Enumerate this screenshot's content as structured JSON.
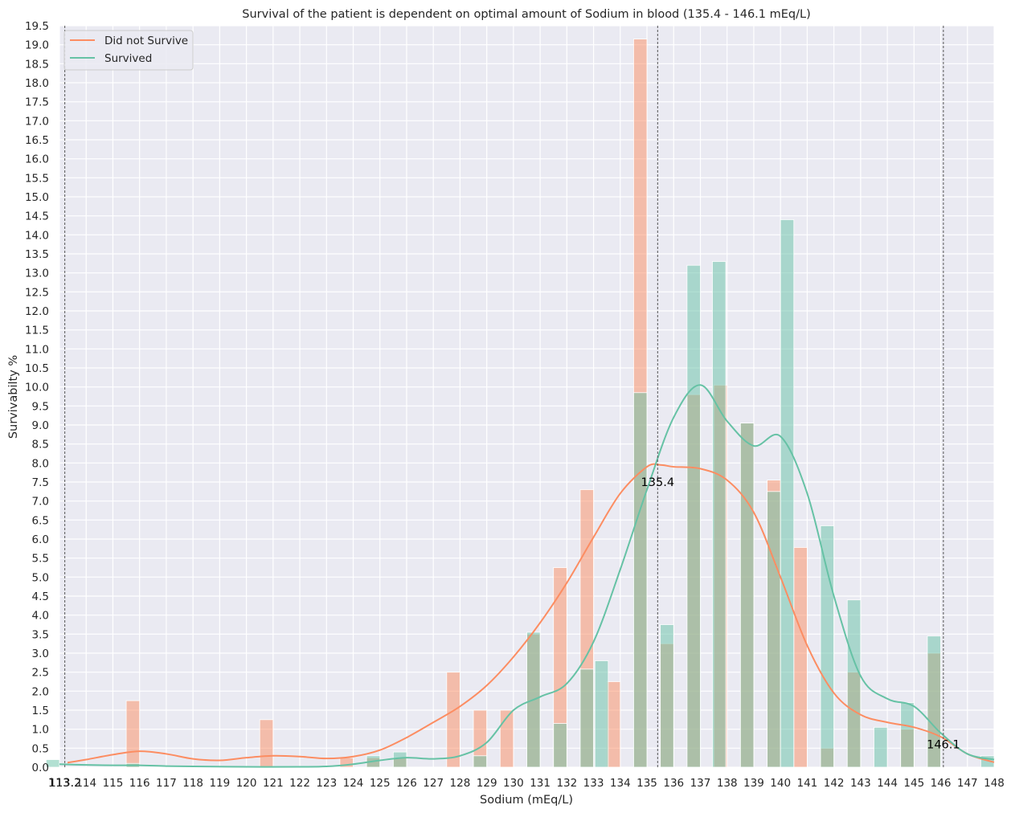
{
  "chart_data": {
    "type": "bar",
    "title": "Survival of the patient is dependent on optimal amount of Sodium in blood (135.4 - 146.1 mEq/L)",
    "xlabel": "Sodium (mEq/L)",
    "ylabel": "Survivabilty %",
    "xlim": [
      113,
      148
    ],
    "ylim": [
      0,
      19.5
    ],
    "x_ticks": [
      113,
      114,
      115,
      116,
      117,
      118,
      119,
      120,
      121,
      122,
      123,
      124,
      125,
      126,
      127,
      128,
      129,
      130,
      131,
      132,
      133,
      134,
      135,
      136,
      137,
      138,
      139,
      140,
      141,
      142,
      143,
      144,
      145,
      146,
      147,
      148
    ],
    "y_ticks": [
      "0.0",
      "0.5",
      "1.0",
      "1.5",
      "2.0",
      "2.5",
      "3.0",
      "3.5",
      "4.0",
      "4.5",
      "5.0",
      "5.5",
      "6.0",
      "6.5",
      "7.0",
      "7.5",
      "8.0",
      "8.5",
      "9.0",
      "9.5",
      "10.0",
      "10.5",
      "11.0",
      "11.5",
      "12.0",
      "12.5",
      "13.0",
      "13.5",
      "14.0",
      "14.5",
      "15.0",
      "15.5",
      "16.0",
      "16.5",
      "17.0",
      "17.5",
      "18.0",
      "18.5",
      "19.0",
      "19.5"
    ],
    "grid": true,
    "legend_position": "top-left",
    "series": [
      {
        "name": "Did not Survive",
        "color": "#fc8d62",
        "bars": [
          {
            "x": 116,
            "value": 1.75
          },
          {
            "x": 121,
            "value": 1.25
          },
          {
            "x": 124,
            "value": 0.25
          },
          {
            "x": 125,
            "value": 0.25
          },
          {
            "x": 126,
            "value": 0.25
          },
          {
            "x": 128,
            "value": 2.5
          },
          {
            "x": 129,
            "value": 1.5
          },
          {
            "x": 130,
            "value": 1.5
          },
          {
            "x": 131,
            "value": 3.5
          },
          {
            "x": 132,
            "value": 5.25
          },
          {
            "x": 133,
            "value": 7.3
          },
          {
            "x": 134,
            "value": 2.25
          },
          {
            "x": 135,
            "value": 19.15
          },
          {
            "x": 136,
            "value": 3.25
          },
          {
            "x": 137,
            "value": 9.8
          },
          {
            "x": 138,
            "value": 10.05
          },
          {
            "x": 139,
            "value": 9.05
          },
          {
            "x": 140,
            "value": 7.55
          },
          {
            "x": 141,
            "value": 5.78
          },
          {
            "x": 142,
            "value": 0.5
          },
          {
            "x": 143,
            "value": 2.5
          },
          {
            "x": 145,
            "value": 1.0
          },
          {
            "x": 146,
            "value": 3.0
          }
        ],
        "kde": [
          [
            113.3,
            0.12
          ],
          [
            114,
            0.2
          ],
          [
            115,
            0.33
          ],
          [
            116,
            0.42
          ],
          [
            117,
            0.35
          ],
          [
            118,
            0.22
          ],
          [
            119,
            0.18
          ],
          [
            120,
            0.25
          ],
          [
            121,
            0.3
          ],
          [
            122,
            0.28
          ],
          [
            123,
            0.23
          ],
          [
            124,
            0.28
          ],
          [
            125,
            0.45
          ],
          [
            126,
            0.78
          ],
          [
            127,
            1.18
          ],
          [
            128,
            1.6
          ],
          [
            129,
            2.15
          ],
          [
            130,
            2.9
          ],
          [
            131,
            3.8
          ],
          [
            132,
            4.85
          ],
          [
            133,
            6.05
          ],
          [
            134,
            7.2
          ],
          [
            135,
            7.9
          ],
          [
            135.5,
            7.95
          ],
          [
            136,
            7.9
          ],
          [
            137,
            7.85
          ],
          [
            138,
            7.55
          ],
          [
            139,
            6.7
          ],
          [
            140,
            5.0
          ],
          [
            141,
            3.2
          ],
          [
            142,
            1.95
          ],
          [
            143,
            1.38
          ],
          [
            144,
            1.18
          ],
          [
            145,
            1.05
          ],
          [
            146,
            0.8
          ],
          [
            147,
            0.35
          ],
          [
            148,
            0.13
          ]
        ]
      },
      {
        "name": "Survived",
        "color": "#66c2a5",
        "bars": [
          {
            "x": 113,
            "value": 0.2
          },
          {
            "x": 116,
            "value": 0.1
          },
          {
            "x": 125,
            "value": 0.3
          },
          {
            "x": 126,
            "value": 0.4
          },
          {
            "x": 129,
            "value": 0.3
          },
          {
            "x": 131,
            "value": 3.55
          },
          {
            "x": 132,
            "value": 1.15
          },
          {
            "x": 133,
            "value": 2.58
          },
          {
            "x": 133.55,
            "value": 2.8
          },
          {
            "x": 135,
            "value": 9.85
          },
          {
            "x": 136,
            "value": 3.75
          },
          {
            "x": 137,
            "value": 13.2
          },
          {
            "x": 137.95,
            "value": 13.3
          },
          {
            "x": 139,
            "value": 9.05
          },
          {
            "x": 140,
            "value": 7.25
          },
          {
            "x": 140.5,
            "value": 14.4
          },
          {
            "x": 142,
            "value": 6.35
          },
          {
            "x": 143,
            "value": 4.4
          },
          {
            "x": 144,
            "value": 1.05
          },
          {
            "x": 145,
            "value": 1.7
          },
          {
            "x": 146,
            "value": 3.45
          },
          {
            "x": 148,
            "value": 0.3
          }
        ],
        "kde": [
          [
            113,
            0.08
          ],
          [
            114,
            0.06
          ],
          [
            115,
            0.05
          ],
          [
            116,
            0.05
          ],
          [
            117,
            0.03
          ],
          [
            118,
            0.02
          ],
          [
            120,
            0.01
          ],
          [
            122,
            0.01
          ],
          [
            123,
            0.02
          ],
          [
            124,
            0.08
          ],
          [
            125,
            0.18
          ],
          [
            126,
            0.25
          ],
          [
            127,
            0.22
          ],
          [
            128,
            0.3
          ],
          [
            129,
            0.65
          ],
          [
            130,
            1.5
          ],
          [
            131,
            1.85
          ],
          [
            132,
            2.2
          ],
          [
            133,
            3.3
          ],
          [
            134,
            5.2
          ],
          [
            135,
            7.3
          ],
          [
            136,
            9.2
          ],
          [
            137,
            10.05
          ],
          [
            138,
            9.1
          ],
          [
            139,
            8.45
          ],
          [
            140,
            8.7
          ],
          [
            141,
            7.2
          ],
          [
            142,
            4.5
          ],
          [
            143,
            2.4
          ],
          [
            144,
            1.8
          ],
          [
            145,
            1.6
          ],
          [
            146,
            0.9
          ],
          [
            147,
            0.35
          ],
          [
            148,
            0.2
          ]
        ]
      }
    ],
    "reference_lines": [
      {
        "x": 113.2,
        "label": "113.2",
        "label_y": -0.4
      },
      {
        "x": 135.4,
        "label": "135.4",
        "label_y": 7.5
      },
      {
        "x": 146.1,
        "label": "146.1",
        "label_y": 0.6
      }
    ]
  }
}
